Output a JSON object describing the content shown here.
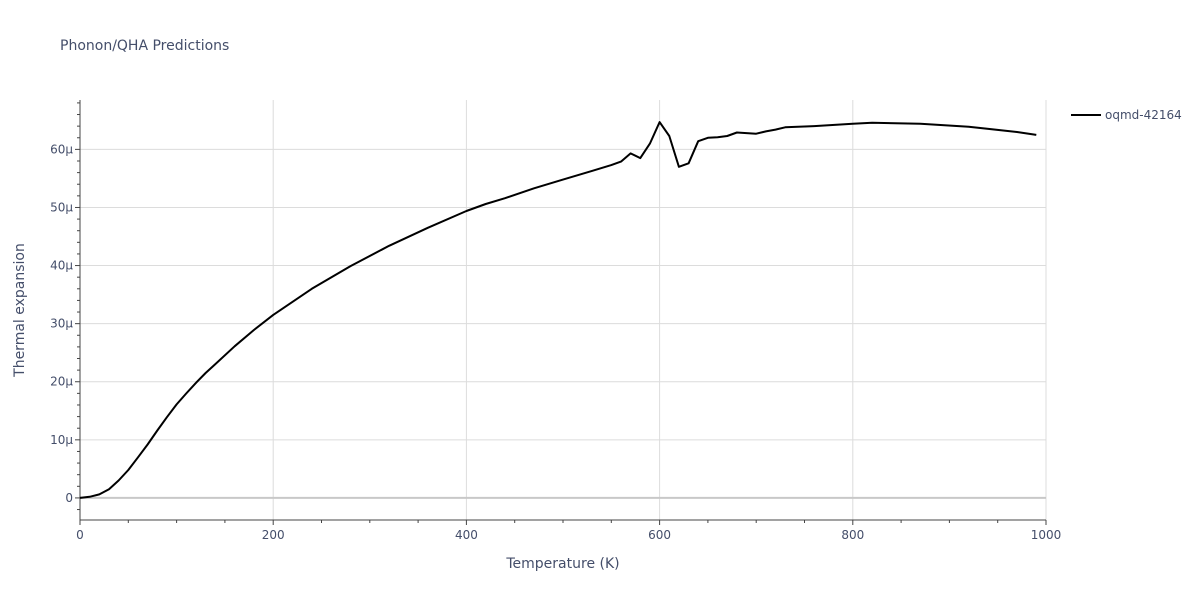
{
  "chart_data": {
    "type": "line",
    "title": "Phonon/QHA Predictions",
    "xlabel": "Temperature (K)",
    "ylabel": "Thermal expansion",
    "xlim": [
      0,
      1000
    ],
    "ylim": [
      -3.8,
      68.5
    ],
    "x_ticks": [
      0,
      200,
      400,
      600,
      800,
      1000
    ],
    "x_tick_labels": [
      "0",
      "200",
      "400",
      "600",
      "800",
      "1000"
    ],
    "y_ticks": [
      0,
      10,
      20,
      30,
      40,
      50,
      60
    ],
    "y_tick_labels": [
      "0",
      "10µ",
      "20µ",
      "30µ",
      "40µ",
      "50µ",
      "60µ"
    ],
    "grid": true,
    "legend_position": "top-right",
    "series": [
      {
        "name": "oqmd-42164",
        "color": "#000000",
        "x": [
          0,
          10,
          20,
          30,
          40,
          50,
          60,
          70,
          80,
          90,
          100,
          110,
          120,
          130,
          140,
          160,
          180,
          200,
          240,
          280,
          320,
          360,
          400,
          420,
          440,
          470,
          500,
          530,
          550,
          560,
          570,
          580,
          590,
          600,
          610,
          620,
          630,
          640,
          650,
          660,
          670,
          680,
          690,
          700,
          710,
          720,
          730,
          760,
          800,
          820,
          870,
          920,
          970,
          990
        ],
        "y": [
          0,
          0.2,
          0.6,
          1.5,
          3.0,
          4.8,
          7.0,
          9.2,
          11.6,
          13.9,
          16.1,
          18.0,
          19.8,
          21.5,
          23.0,
          26.1,
          28.9,
          31.5,
          36.0,
          39.9,
          43.4,
          46.5,
          49.4,
          50.6,
          51.6,
          53.3,
          54.8,
          56.3,
          57.3,
          57.9,
          59.3,
          58.5,
          61.0,
          64.7,
          62.3,
          57.0,
          57.6,
          61.4,
          62.0,
          62.1,
          62.3,
          62.9,
          62.8,
          62.7,
          63.1,
          63.4,
          63.8,
          64.0,
          64.4,
          64.6,
          64.4,
          63.9,
          63.0,
          62.5
        ]
      }
    ]
  }
}
